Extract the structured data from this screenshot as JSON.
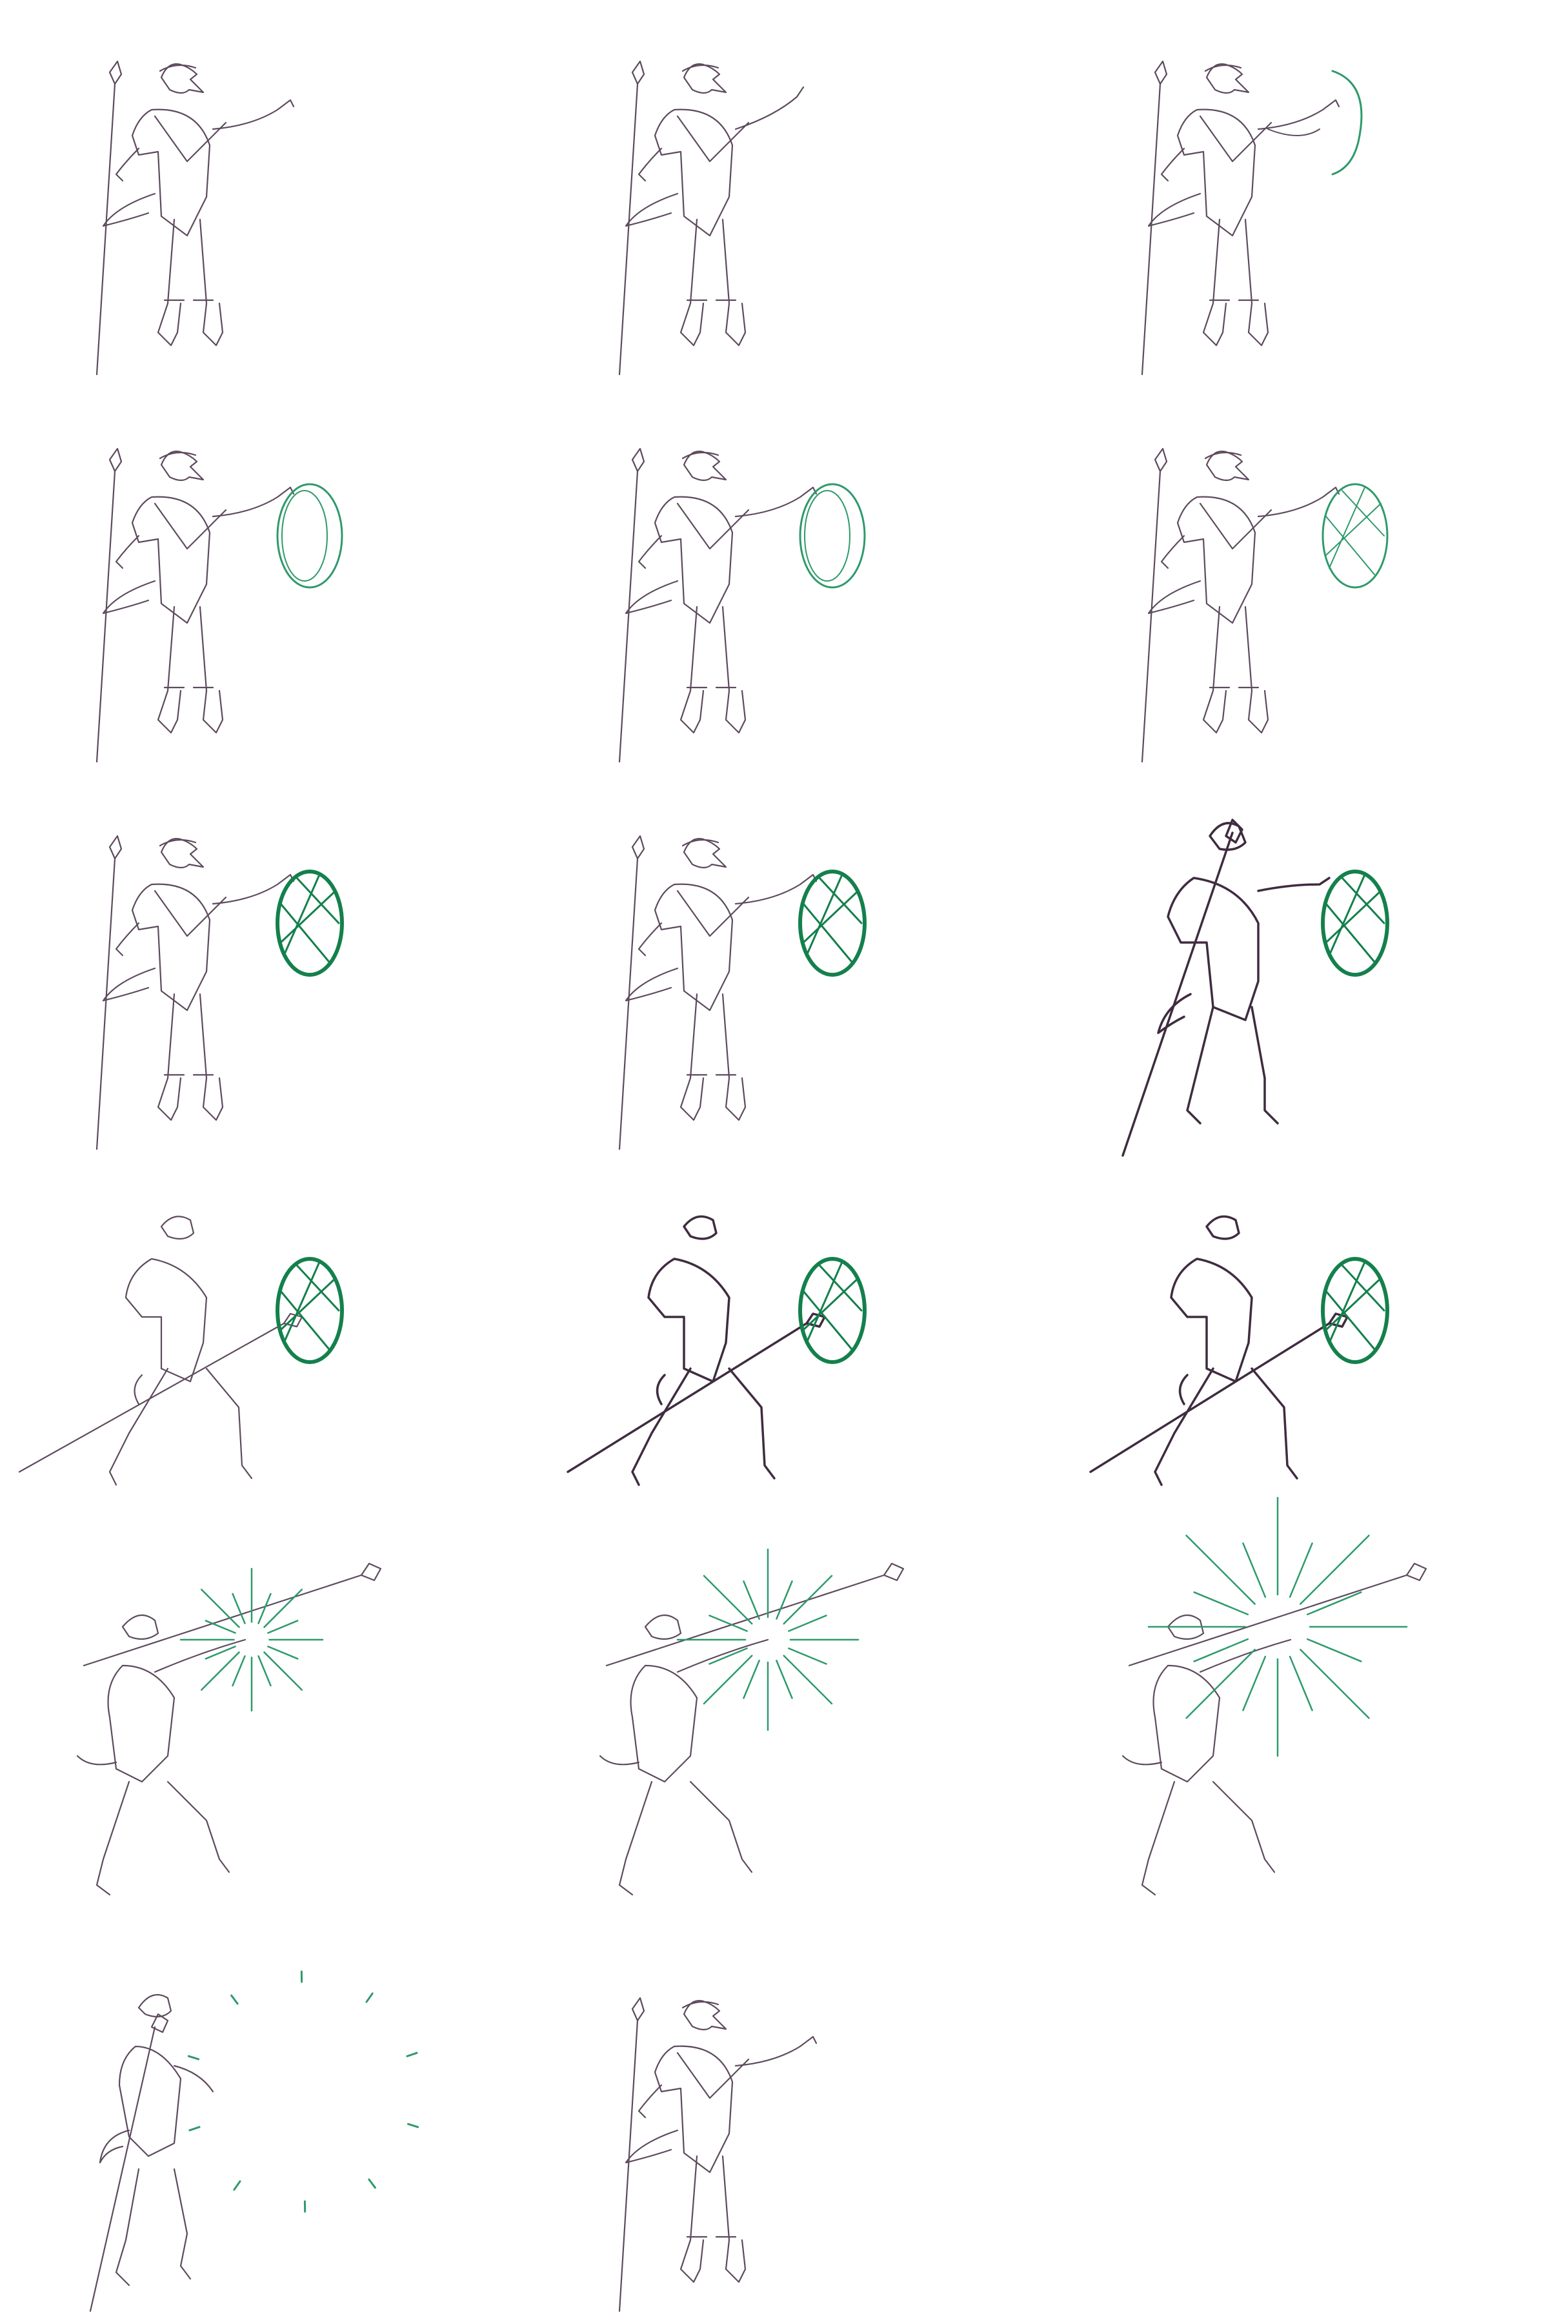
{
  "sheet": {
    "background": "#ffffff",
    "line_color": "#5e4a5e",
    "line_color_dark": "#3f2c40",
    "magic_color": "#2e9a6a",
    "magic_color_dark": "#14804c"
  },
  "frames": [
    {
      "pose": "stand-reach",
      "effect": "none",
      "line": "light"
    },
    {
      "pose": "stand-point",
      "effect": "none",
      "line": "light"
    },
    {
      "pose": "stand-reach",
      "effect": "swirl",
      "line": "light"
    },
    {
      "pose": "stand-reach",
      "effect": "shield-form",
      "line": "light"
    },
    {
      "pose": "stand-reach",
      "effect": "shield-form2",
      "line": "light"
    },
    {
      "pose": "stand-reach",
      "effect": "shield-lattice",
      "line": "light"
    },
    {
      "pose": "stand-reach",
      "effect": "shield",
      "line": "light"
    },
    {
      "pose": "stand-reach",
      "effect": "shield",
      "line": "light"
    },
    {
      "pose": "lean-staff",
      "effect": "shield",
      "line": "dark"
    },
    {
      "pose": "lunge",
      "effect": "shield",
      "line": "light"
    },
    {
      "pose": "lunge",
      "effect": "shield",
      "line": "dark"
    },
    {
      "pose": "lunge",
      "effect": "shield",
      "line": "dark"
    },
    {
      "pose": "strike",
      "effect": "burst-small",
      "line": "light"
    },
    {
      "pose": "strike",
      "effect": "burst",
      "line": "light"
    },
    {
      "pose": "strike",
      "effect": "burst-large",
      "line": "light"
    },
    {
      "pose": "recover",
      "effect": "sparks",
      "line": "light"
    },
    {
      "pose": "stand-reach",
      "effect": "none",
      "line": "light"
    }
  ]
}
